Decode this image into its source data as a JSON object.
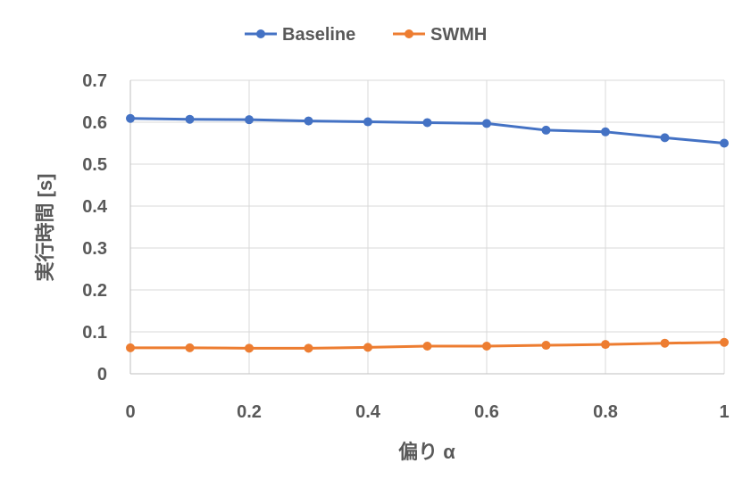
{
  "chart_data": {
    "type": "line",
    "title": "",
    "xlabel": "偏り α",
    "ylabel": "実行時間 [s]",
    "x": [
      0,
      0.1,
      0.2,
      0.3,
      0.4,
      0.5,
      0.6,
      0.7,
      0.8,
      0.9,
      1.0
    ],
    "xlim": [
      0,
      1
    ],
    "ylim": [
      0,
      0.7
    ],
    "xticks": [
      0,
      0.2,
      0.4,
      0.6,
      0.8,
      1
    ],
    "xtick_labels": [
      "0",
      "0.2",
      "0.4",
      "0.6",
      "0.8",
      "1"
    ],
    "yticks": [
      0,
      0.1,
      0.2,
      0.3,
      0.4,
      0.5,
      0.6,
      0.7
    ],
    "ytick_labels": [
      "0",
      "0.1",
      "0.2",
      "0.3",
      "0.4",
      "0.5",
      "0.6",
      "0.7"
    ],
    "grid": true,
    "legend_position": "top-center",
    "series": [
      {
        "name": "Baseline",
        "color": "#4472C4",
        "values": [
          0.609,
          0.607,
          0.606,
          0.603,
          0.601,
          0.599,
          0.597,
          0.581,
          0.577,
          0.563,
          0.55
        ]
      },
      {
        "name": "SWMH",
        "color": "#ED7D31",
        "values": [
          0.062,
          0.062,
          0.061,
          0.061,
          0.063,
          0.066,
          0.066,
          0.068,
          0.07,
          0.073,
          0.075
        ]
      }
    ]
  }
}
